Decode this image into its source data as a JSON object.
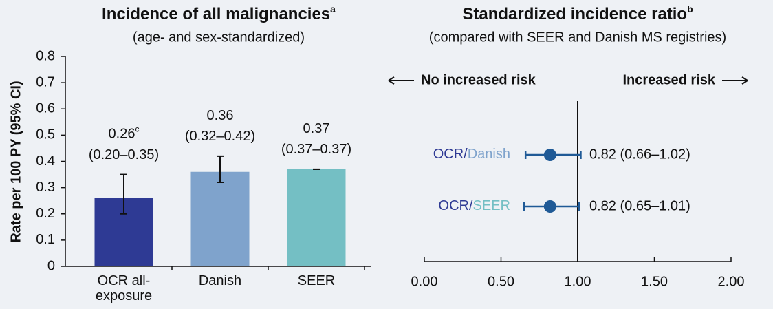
{
  "chart_data": [
    {
      "type": "bar",
      "title": "Incidence of all malignancies",
      "title_sup": "a",
      "subtitle": "(age- and sex-standardized)",
      "y_label": "Rate per 100 PY (95% CI)",
      "categories": [
        "OCR all-exposure",
        "Danish",
        "SEER"
      ],
      "values": [
        0.26,
        0.36,
        0.37
      ],
      "value_labels": [
        "0.26",
        "0.36",
        "0.37"
      ],
      "value_label_sup": [
        "c",
        null,
        null
      ],
      "ci_low": [
        0.2,
        0.32,
        0.37
      ],
      "ci_high": [
        0.35,
        0.42,
        0.37
      ],
      "ci_labels": [
        "(0.20–0.35)",
        "(0.32–0.42)",
        "(0.37–0.37)"
      ],
      "colors": [
        "#2e3a94",
        "#7fa3cc",
        "#74bfc4"
      ],
      "ylim": [
        0,
        0.8
      ],
      "yticks": [
        0,
        0.1,
        0.2,
        0.3,
        0.4,
        0.5,
        0.6,
        0.7,
        0.8
      ]
    },
    {
      "type": "forest",
      "title": "Standardized incidence ratio",
      "title_sup": "b",
      "subtitle": "(compared with SEER and Danish MS registries)",
      "left_note": "No increased risk",
      "right_note": "Increased risk",
      "reference": 1,
      "rows": [
        {
          "label": [
            "OCR",
            "/",
            "Danish"
          ],
          "label_colors": [
            "#2e3a94",
            "#2e3a94",
            "#7fa3cc"
          ],
          "value": 0.82,
          "ci": [
            0.66,
            1.02
          ],
          "value_label": "0.82 (0.66–1.02)"
        },
        {
          "label": [
            "OCR",
            "/",
            "SEER"
          ],
          "label_colors": [
            "#2e3a94",
            "#2e3a94",
            "#74bfc4"
          ],
          "value": 0.82,
          "ci": [
            0.65,
            1.01
          ],
          "value_label": "0.82 (0.65–1.01)"
        }
      ],
      "color": "#1f5a96",
      "xlim": [
        0,
        2
      ],
      "xticks": [
        {
          "value": 0,
          "label": "0.00"
        },
        {
          "value": 0.5,
          "label": "0.50"
        },
        {
          "value": 1,
          "label": "1.00"
        },
        {
          "value": 1.5,
          "label": "1.50"
        },
        {
          "value": 2,
          "label": "2.00"
        }
      ]
    }
  ]
}
